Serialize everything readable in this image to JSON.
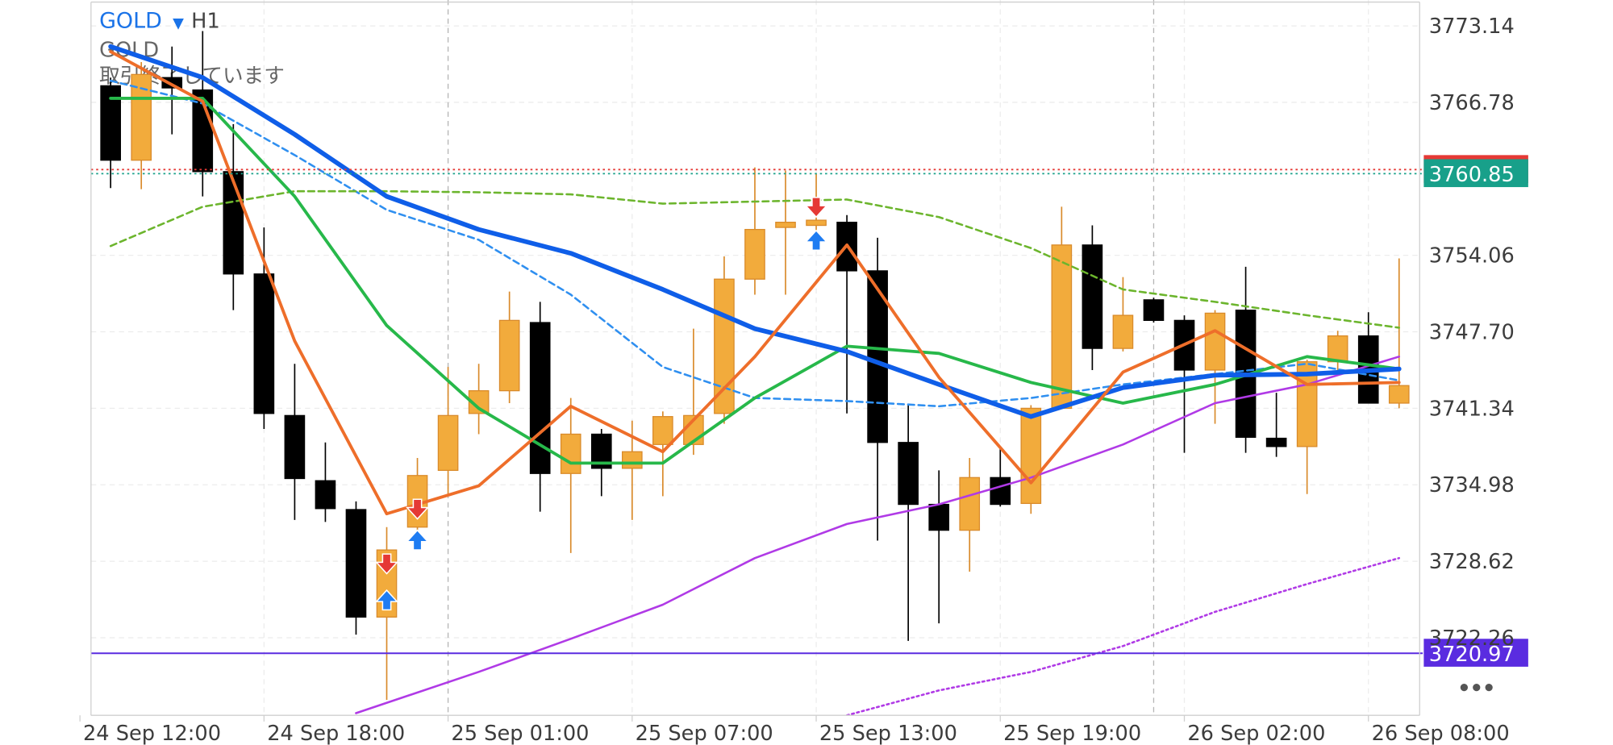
{
  "chart_data": {
    "type": "candlestick",
    "title": "GOLD",
    "timeframe": "H1",
    "subtitle": "GOLD",
    "status": "取引終了しています",
    "xlim": [
      -0.64,
      42.67
    ],
    "ylim": [
      3715.81,
      3775.29
    ],
    "xticks": [
      {
        "value": -1,
        "label": "24 Sep 12:00"
      },
      {
        "value": 5,
        "label": "24 Sep 18:00"
      },
      {
        "value": 11,
        "label": "25 Sep 01:00"
      },
      {
        "value": 17,
        "label": "25 Sep 07:00"
      },
      {
        "value": 23,
        "label": "25 Sep 13:00"
      },
      {
        "value": 29,
        "label": "25 Sep 19:00"
      },
      {
        "value": 35,
        "label": "26 Sep 02:00"
      },
      {
        "value": 41,
        "label": "26 Sep 08:00"
      }
    ],
    "yticks": [
      3773.14,
      3766.78,
      3754.06,
      {
        "value": 3747.7,
        "label": "3747.70"
      },
      3741.34,
      3734.98,
      3728.62,
      3722.26
    ],
    "grid": true,
    "session_separators": [
      11,
      34
    ],
    "up_color": "#f2ab3c",
    "down_color": "#000000",
    "candles": {
      "open": [
        3768.16,
        3761.97,
        3768.84,
        3767.81,
        3761.02,
        3752.51,
        3740.74,
        3735.32,
        3732.92,
        3723.98,
        3731.46,
        3736.18,
        3740.91,
        3742.8,
        3748.47,
        3735.92,
        3739.19,
        3736.35,
        3738.33,
        3738.33,
        3740.91,
        3752.08,
        3756.38,
        3756.55,
        3756.81,
        3752.77,
        3738.5,
        3733.35,
        3731.2,
        3735.58,
        3733.43,
        3741.34,
        3754.92,
        3746.32,
        3750.36,
        3748.65,
        3744.52,
        3749.5,
        3738.85,
        3738.16,
        3745.21,
        3747.36,
        3741.77
      ],
      "high": [
        3768.84,
        3770.13,
        3771.42,
        3772.71,
        3764.97,
        3756.38,
        3745.04,
        3738.5,
        3733.6,
        3731.46,
        3737.21,
        3744.78,
        3745.04,
        3751.05,
        3750.19,
        3742.2,
        3739.62,
        3740.31,
        3741.08,
        3747.96,
        3753.97,
        3761.37,
        3761.11,
        3760.85,
        3757.41,
        3755.52,
        3741.6,
        3736.18,
        3737.21,
        3738.16,
        3741.6,
        3758.1,
        3756.55,
        3752.25,
        3750.54,
        3749.07,
        3749.5,
        3753.11,
        3742.63,
        3745.38,
        3747.79,
        3749.33,
        3753.8
      ],
      "low": [
        3759.65,
        3759.56,
        3764.12,
        3758.96,
        3749.5,
        3739.62,
        3732.06,
        3731.89,
        3722.52,
        3717.1,
        3729.74,
        3734.03,
        3739.19,
        3741.77,
        3732.74,
        3729.31,
        3734.03,
        3732.06,
        3734.03,
        3737.47,
        3740.05,
        3750.79,
        3750.79,
        3755.69,
        3740.91,
        3730.34,
        3722.0,
        3723.46,
        3727.76,
        3733.17,
        3732.57,
        3741.34,
        3744.52,
        3746.07,
        3748.47,
        3737.64,
        3740.05,
        3737.64,
        3737.3,
        3734.21,
        3744.35,
        3741.77,
        3741.34
      ],
      "close": [
        3761.97,
        3769.1,
        3767.98,
        3761.02,
        3752.51,
        3740.91,
        3735.5,
        3733.0,
        3723.98,
        3729.56,
        3735.75,
        3740.74,
        3742.8,
        3748.65,
        3735.92,
        3739.19,
        3736.35,
        3737.73,
        3740.65,
        3740.74,
        3752.08,
        3756.21,
        3756.81,
        3756.98,
        3752.77,
        3738.5,
        3733.35,
        3731.2,
        3735.58,
        3733.35,
        3741.34,
        3754.92,
        3746.32,
        3749.07,
        3748.65,
        3744.52,
        3749.25,
        3738.93,
        3738.16,
        3745.21,
        3747.36,
        3741.77,
        3743.23
      ]
    },
    "lines": [
      {
        "color": "#2f8ff0",
        "width": 2,
        "dash": "dashed",
        "x": [
          0,
          3,
          6,
          9,
          12,
          15,
          18,
          21,
          24,
          27,
          30,
          33,
          36,
          39,
          42
        ],
        "values": [
          3768.58,
          3766.69,
          3762.4,
          3757.84,
          3755.35,
          3750.79,
          3744.78,
          3742.2,
          3741.94,
          3741.51,
          3742.2,
          3743.32,
          3744.18,
          3745.04,
          3743.66
        ]
      },
      {
        "color": "#6cb52d",
        "width": 2,
        "dash": "dashed",
        "x": [
          0,
          3,
          6,
          9,
          12,
          15,
          18,
          21,
          24,
          27,
          30,
          33,
          36,
          39,
          42
        ],
        "values": [
          3754.83,
          3758.1,
          3759.39,
          3759.39,
          3759.3,
          3759.13,
          3758.36,
          3758.53,
          3758.7,
          3757.24,
          3754.66,
          3751.22,
          3750.19,
          3749.07,
          3748.04
        ]
      },
      {
        "color": "#b03ae6",
        "width": 2,
        "dash": "dotted",
        "x": [
          24,
          27,
          30,
          33,
          36,
          39,
          42
        ],
        "values": [
          3715.81,
          3717.88,
          3719.42,
          3721.57,
          3724.41,
          3726.73,
          3728.88
        ]
      },
      {
        "color": "#b03ae6",
        "width": 2,
        "dash": "solid",
        "x": [
          8,
          12,
          15,
          18,
          21,
          24,
          27,
          30,
          33,
          36,
          39,
          42
        ],
        "values": [
          3715.99,
          3719.42,
          3722.17,
          3725.01,
          3728.88,
          3731.72,
          3733.35,
          3735.58,
          3738.33,
          3741.77,
          3743.32,
          3745.64
        ]
      },
      {
        "color": "#27b84a",
        "width": 3,
        "dash": "solid",
        "x": [
          0,
          3,
          6,
          9,
          12,
          15,
          18,
          21,
          24,
          27,
          30,
          33,
          36,
          39,
          42
        ],
        "values": [
          3767.12,
          3767.12,
          3758.96,
          3748.22,
          3741.34,
          3736.78,
          3736.78,
          3742.2,
          3746.5,
          3745.9,
          3743.49,
          3741.77,
          3743.32,
          3745.64,
          3744.61
        ]
      },
      {
        "color": "#0f5ee8",
        "width": 4.5,
        "dash": "solid",
        "x": [
          0,
          3,
          6,
          9,
          12,
          15,
          18,
          21,
          24,
          27,
          30,
          33,
          36,
          39,
          42
        ],
        "values": [
          3771.42,
          3768.84,
          3764.12,
          3758.96,
          3756.21,
          3754.23,
          3751.22,
          3747.96,
          3746.07,
          3743.32,
          3740.65,
          3743.06,
          3744.09,
          3744.18,
          3744.61
        ]
      },
      {
        "color": "#ee6e2a",
        "width": 3,
        "dash": "solid",
        "x": [
          0,
          3,
          6,
          9,
          12,
          15,
          18,
          21,
          24,
          27,
          30,
          33,
          36,
          39,
          42
        ],
        "values": [
          3770.99,
          3766.87,
          3746.93,
          3732.57,
          3734.89,
          3741.51,
          3737.73,
          3745.64,
          3754.92,
          3743.92,
          3735.15,
          3744.35,
          3747.79,
          3743.32,
          3743.49
        ]
      }
    ],
    "levels": [
      {
        "value": 3761.19,
        "color": "#e53935",
        "dash": "dotted"
      },
      {
        "value": 3760.85,
        "color": "#18a08a",
        "dash": "dotted"
      },
      {
        "value": 3720.97,
        "color": "#5a2ce0",
        "dash": "solid"
      }
    ],
    "trade_markers": {
      "sell": {
        "color": "#e53935",
        "x": [
          9,
          10,
          23
        ],
        "values": [
          3728.19,
          3732.74,
          3757.84
        ]
      },
      "buy": {
        "color": "#1e7cf2",
        "x": [
          9,
          10,
          23
        ],
        "values": [
          3725.61,
          3730.6,
          3755.52
        ]
      }
    }
  }
}
